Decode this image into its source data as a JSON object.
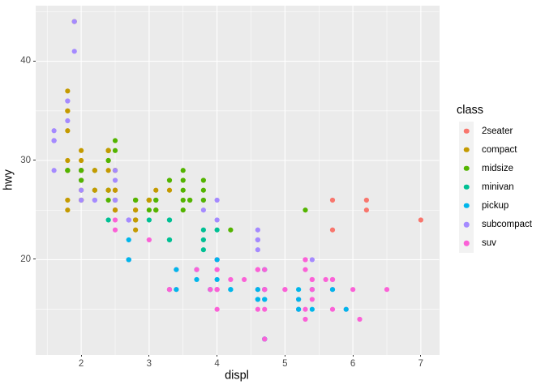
{
  "chart_data": {
    "type": "scatter",
    "title": "",
    "xlabel": "displ",
    "ylabel": "hwy",
    "x_ticks": [
      2,
      3,
      4,
      5,
      6,
      7
    ],
    "x_minor_ticks": [
      1.5,
      2.5,
      3.5,
      4.5,
      5.5,
      6.5
    ],
    "y_ticks": [
      20,
      30,
      40
    ],
    "y_minor_ticks": [
      15,
      25,
      35,
      45
    ],
    "xlim": [
      1.33,
      7.27
    ],
    "ylim": [
      10.4,
      45.6
    ],
    "grid": {
      "major": true,
      "minor": true,
      "color": "#FFFFFF"
    },
    "panel_background": "#EBEBEB",
    "legend": {
      "title": "class",
      "position": "right",
      "key_background": "#F2F2F2"
    },
    "classes": [
      {
        "name": "2seater",
        "color": "#F8766D"
      },
      {
        "name": "compact",
        "color": "#C49A00"
      },
      {
        "name": "midsize",
        "color": "#53B400"
      },
      {
        "name": "minivan",
        "color": "#00C094"
      },
      {
        "name": "pickup",
        "color": "#00B6EB"
      },
      {
        "name": "subcompact",
        "color": "#A58AFF"
      },
      {
        "name": "suv",
        "color": "#FB61D7"
      }
    ],
    "point_format": [
      "displ",
      "hwy",
      "class_index"
    ],
    "points": [
      [
        1.8,
        29,
        1
      ],
      [
        1.8,
        29,
        1
      ],
      [
        2,
        31,
        1
      ],
      [
        2,
        30,
        1
      ],
      [
        2.8,
        26,
        1
      ],
      [
        2.8,
        26,
        1
      ],
      [
        3.1,
        27,
        1
      ],
      [
        1.8,
        26,
        1
      ],
      [
        1.8,
        25,
        1
      ],
      [
        2,
        28,
        1
      ],
      [
        2,
        27,
        1
      ],
      [
        2.8,
        25,
        1
      ],
      [
        2.8,
        25,
        1
      ],
      [
        3.1,
        25,
        1
      ],
      [
        3.1,
        25,
        1
      ],
      [
        2.8,
        24,
        2
      ],
      [
        3.1,
        25,
        2
      ],
      [
        4.2,
        23,
        2
      ],
      [
        5.3,
        20,
        6
      ],
      [
        5.3,
        15,
        6
      ],
      [
        5.3,
        20,
        6
      ],
      [
        5.7,
        17,
        6
      ],
      [
        6,
        17,
        6
      ],
      [
        5.7,
        26,
        0
      ],
      [
        5.7,
        23,
        0
      ],
      [
        6.2,
        26,
        0
      ],
      [
        6.2,
        25,
        0
      ],
      [
        7,
        24,
        0
      ],
      [
        5.3,
        19,
        6
      ],
      [
        5.3,
        14,
        6
      ],
      [
        5.7,
        15,
        6
      ],
      [
        6.5,
        17,
        6
      ],
      [
        2.4,
        27,
        2
      ],
      [
        2.4,
        30,
        2
      ],
      [
        3.1,
        26,
        2
      ],
      [
        3.5,
        29,
        2
      ],
      [
        3.6,
        26,
        2
      ],
      [
        2.4,
        24,
        3
      ],
      [
        3,
        24,
        3
      ],
      [
        3.3,
        22,
        3
      ],
      [
        3.3,
        22,
        3
      ],
      [
        3.3,
        24,
        3
      ],
      [
        3.3,
        24,
        3
      ],
      [
        3.3,
        17,
        3
      ],
      [
        3.8,
        22,
        3
      ],
      [
        3.8,
        21,
        3
      ],
      [
        3.8,
        23,
        3
      ],
      [
        4,
        23,
        3
      ],
      [
        3.7,
        19,
        4
      ],
      [
        3.7,
        18,
        4
      ],
      [
        3.9,
        17,
        4
      ],
      [
        3.9,
        17,
        4
      ],
      [
        4.7,
        19,
        4
      ],
      [
        4.7,
        19,
        4
      ],
      [
        4.7,
        12,
        4
      ],
      [
        5.2,
        17,
        4
      ],
      [
        5.2,
        15,
        4
      ],
      [
        3.9,
        17,
        6
      ],
      [
        4.7,
        17,
        6
      ],
      [
        4.7,
        17,
        6
      ],
      [
        4.7,
        12,
        6
      ],
      [
        5.2,
        15,
        6
      ],
      [
        5.2,
        16,
        6
      ],
      [
        5.9,
        15,
        6
      ],
      [
        4.7,
        16,
        4
      ],
      [
        4.7,
        12,
        4
      ],
      [
        4.7,
        17,
        4
      ],
      [
        4.7,
        17,
        4
      ],
      [
        4.7,
        16,
        4
      ],
      [
        4.7,
        12,
        4
      ],
      [
        5.2,
        15,
        4
      ],
      [
        5.2,
        16,
        4
      ],
      [
        5.7,
        17,
        4
      ],
      [
        5.9,
        15,
        4
      ],
      [
        4.6,
        17,
        6
      ],
      [
        5.4,
        17,
        6
      ],
      [
        5.4,
        18,
        6
      ],
      [
        4,
        17,
        6
      ],
      [
        4,
        17,
        6
      ],
      [
        4,
        17,
        6
      ],
      [
        4,
        19,
        6
      ],
      [
        4.6,
        19,
        6
      ],
      [
        5,
        17,
        6
      ],
      [
        4.2,
        17,
        4
      ],
      [
        4.2,
        17,
        4
      ],
      [
        4.6,
        16,
        4
      ],
      [
        4.6,
        16,
        4
      ],
      [
        4.6,
        17,
        4
      ],
      [
        5.4,
        15,
        4
      ],
      [
        5.4,
        17,
        4
      ],
      [
        3.8,
        26,
        5
      ],
      [
        3.8,
        25,
        5
      ],
      [
        4,
        26,
        5
      ],
      [
        4,
        24,
        5
      ],
      [
        4.6,
        21,
        5
      ],
      [
        4.6,
        22,
        5
      ],
      [
        4.6,
        23,
        5
      ],
      [
        4.6,
        22,
        5
      ],
      [
        5.4,
        20,
        5
      ],
      [
        1.6,
        33,
        5
      ],
      [
        1.6,
        32,
        5
      ],
      [
        1.6,
        32,
        5
      ],
      [
        1.6,
        29,
        5
      ],
      [
        1.6,
        32,
        5
      ],
      [
        1.8,
        34,
        5
      ],
      [
        1.8,
        36,
        5
      ],
      [
        1.8,
        36,
        5
      ],
      [
        2,
        29,
        5
      ],
      [
        2.4,
        26,
        2
      ],
      [
        2.4,
        27,
        2
      ],
      [
        2.4,
        30,
        2
      ],
      [
        2.4,
        31,
        2
      ],
      [
        2.5,
        26,
        2
      ],
      [
        2.5,
        26,
        2
      ],
      [
        3.3,
        28,
        2
      ],
      [
        2,
        26,
        5
      ],
      [
        2,
        29,
        5
      ],
      [
        2,
        28,
        5
      ],
      [
        2,
        27,
        5
      ],
      [
        2.7,
        24,
        5
      ],
      [
        2.7,
        24,
        5
      ],
      [
        2.7,
        24,
        5
      ],
      [
        3,
        22,
        6
      ],
      [
        3.7,
        19,
        6
      ],
      [
        4,
        20,
        6
      ],
      [
        4.7,
        17,
        6
      ],
      [
        4.7,
        12,
        6
      ],
      [
        4.7,
        19,
        6
      ],
      [
        5.7,
        18,
        6
      ],
      [
        6.1,
        14,
        6
      ],
      [
        4,
        15,
        6
      ],
      [
        4.2,
        18,
        6
      ],
      [
        4.4,
        18,
        6
      ],
      [
        4.6,
        15,
        6
      ],
      [
        5.4,
        17,
        6
      ],
      [
        5.4,
        16,
        6
      ],
      [
        5.4,
        18,
        6
      ],
      [
        4,
        17,
        6
      ],
      [
        4,
        19,
        6
      ],
      [
        4.6,
        19,
        6
      ],
      [
        5,
        17,
        6
      ],
      [
        2.4,
        29,
        1
      ],
      [
        2.4,
        27,
        1
      ],
      [
        2.5,
        31,
        2
      ],
      [
        2.5,
        32,
        2
      ],
      [
        3.5,
        27,
        2
      ],
      [
        3.5,
        26,
        2
      ],
      [
        3,
        26,
        2
      ],
      [
        3,
        25,
        2
      ],
      [
        3.5,
        25,
        2
      ],
      [
        3.3,
        17,
        6
      ],
      [
        3.3,
        17,
        6
      ],
      [
        4,
        20,
        6
      ],
      [
        5.6,
        18,
        6
      ],
      [
        3.1,
        26,
        2
      ],
      [
        3.8,
        26,
        2
      ],
      [
        3.8,
        27,
        2
      ],
      [
        3.8,
        28,
        2
      ],
      [
        5.3,
        25,
        2
      ],
      [
        2.5,
        25,
        6
      ],
      [
        2.5,
        24,
        6
      ],
      [
        2.5,
        27,
        6
      ],
      [
        2.5,
        25,
        6
      ],
      [
        2.5,
        26,
        6
      ],
      [
        2.5,
        23,
        6
      ],
      [
        2.2,
        26,
        5
      ],
      [
        2.2,
        26,
        5
      ],
      [
        2.5,
        26,
        5
      ],
      [
        2.5,
        26,
        5
      ],
      [
        2.5,
        25,
        1
      ],
      [
        2.5,
        27,
        1
      ],
      [
        2.5,
        25,
        1
      ],
      [
        2.5,
        27,
        1
      ],
      [
        2.7,
        20,
        6
      ],
      [
        2.7,
        20,
        6
      ],
      [
        3.4,
        19,
        6
      ],
      [
        3.4,
        17,
        6
      ],
      [
        4,
        20,
        6
      ],
      [
        4.7,
        17,
        6
      ],
      [
        2.2,
        29,
        2
      ],
      [
        2.2,
        27,
        2
      ],
      [
        2.4,
        31,
        2
      ],
      [
        2.4,
        31,
        2
      ],
      [
        3,
        26,
        2
      ],
      [
        3,
        26,
        2
      ],
      [
        3.5,
        28,
        2
      ],
      [
        2.2,
        27,
        1
      ],
      [
        2.2,
        29,
        1
      ],
      [
        2.4,
        31,
        1
      ],
      [
        2.4,
        31,
        1
      ],
      [
        3,
        26,
        1
      ],
      [
        3,
        26,
        1
      ],
      [
        3.3,
        27,
        1
      ],
      [
        1.8,
        30,
        1
      ],
      [
        1.8,
        33,
        1
      ],
      [
        1.8,
        35,
        1
      ],
      [
        1.8,
        37,
        1
      ],
      [
        1.8,
        35,
        1
      ],
      [
        4.7,
        15,
        6
      ],
      [
        5.7,
        18,
        6
      ],
      [
        2.7,
        20,
        4
      ],
      [
        2.7,
        20,
        4
      ],
      [
        2.7,
        22,
        4
      ],
      [
        3.4,
        17,
        4
      ],
      [
        3.4,
        19,
        4
      ],
      [
        4,
        20,
        4
      ],
      [
        4,
        18,
        4
      ],
      [
        2,
        29,
        1
      ],
      [
        2,
        26,
        1
      ],
      [
        2,
        29,
        1
      ],
      [
        2,
        29,
        1
      ],
      [
        2.8,
        24,
        1
      ],
      [
        1.9,
        44,
        1
      ],
      [
        2,
        29,
        1
      ],
      [
        2,
        26,
        1
      ],
      [
        2,
        29,
        1
      ],
      [
        2,
        29,
        1
      ],
      [
        2.5,
        29,
        1
      ],
      [
        2.5,
        29,
        1
      ],
      [
        2.8,
        23,
        1
      ],
      [
        2.8,
        24,
        1
      ],
      [
        1.9,
        44,
        5
      ],
      [
        1.9,
        41,
        5
      ],
      [
        2,
        29,
        5
      ],
      [
        2,
        26,
        5
      ],
      [
        2.5,
        28,
        5
      ],
      [
        2.5,
        29,
        5
      ],
      [
        1.8,
        29,
        2
      ],
      [
        1.8,
        29,
        2
      ],
      [
        2,
        28,
        2
      ],
      [
        2,
        29,
        2
      ],
      [
        2.8,
        26,
        2
      ],
      [
        2.8,
        26,
        2
      ],
      [
        3.6,
        26,
        2
      ]
    ]
  },
  "colors": {
    "page_background": "#FFFFFF",
    "panel_background": "#EBEBEB",
    "gridline": "#FFFFFF",
    "tick_mark": "#333333",
    "tick_text": "#4D4D4D",
    "axis_title_text": "#000000",
    "legend_key_background": "#F2F2F2"
  }
}
